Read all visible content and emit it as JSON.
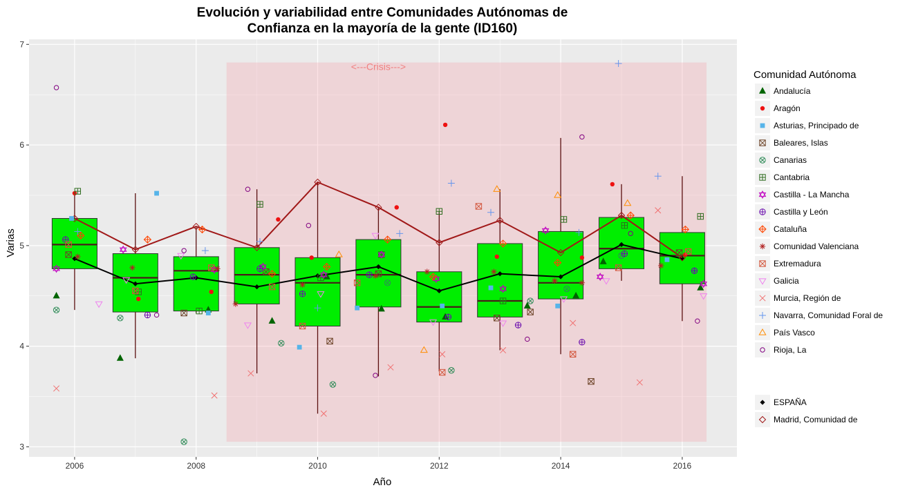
{
  "chart_data": {
    "type": "box",
    "title_line1": "Evolución y variabilidad entre Comunidades Autónomas de",
    "title_line2": "Confianza en la mayoría de la gente (ID160)",
    "xlabel": "Año",
    "ylabel": "Varias",
    "xlim": [
      2005.25,
      2016.9
    ],
    "ylim": [
      2.9,
      7.05
    ],
    "x_ticks": [
      2006,
      2008,
      2010,
      2012,
      2014,
      2016
    ],
    "y_ticks": [
      3,
      4,
      5,
      6,
      7
    ],
    "grid": true,
    "crisis": {
      "label": "<---Crisis--->",
      "x_range": [
        2008.5,
        2016.4
      ],
      "y_range": [
        3.05,
        6.82
      ],
      "color": "#f4a0a8"
    },
    "legend_title": "Comunidad Autónoma",
    "legend_position": "right",
    "boxes": [
      {
        "x": 2006,
        "q1": 4.77,
        "median": 5.01,
        "q3": 5.27,
        "whisker_low": 4.36,
        "whisker_high": 5.54
      },
      {
        "x": 2007,
        "q1": 4.34,
        "median": 4.68,
        "q3": 4.92,
        "whisker_low": 3.88,
        "whisker_high": 5.52
      },
      {
        "x": 2008,
        "q1": 4.35,
        "median": 4.75,
        "q3": 4.89,
        "whisker_low": 4.33,
        "whisker_high": 5.18
      },
      {
        "x": 2009,
        "q1": 4.42,
        "median": 4.71,
        "q3": 4.98,
        "whisker_low": 3.73,
        "whisker_high": 5.56
      },
      {
        "x": 2010,
        "q1": 4.2,
        "median": 4.63,
        "q3": 4.88,
        "whisker_low": 3.33,
        "whisker_high": 5.63
      },
      {
        "x": 2011,
        "q1": 4.39,
        "median": 4.71,
        "q3": 5.06,
        "whisker_low": 3.7,
        "whisker_high": 5.38
      },
      {
        "x": 2012,
        "q1": 4.24,
        "median": 4.39,
        "q3": 4.74,
        "whisker_low": 3.75,
        "whisker_high": 5.34
      },
      {
        "x": 2013,
        "q1": 4.29,
        "median": 4.45,
        "q3": 5.02,
        "whisker_low": 3.96,
        "whisker_high": 5.56
      },
      {
        "x": 2014,
        "q1": 4.47,
        "median": 4.63,
        "q3": 5.14,
        "whisker_low": 3.92,
        "whisker_high": 6.07
      },
      {
        "x": 2015,
        "q1": 4.77,
        "median": 4.97,
        "q3": 5.28,
        "whisker_low": 4.65,
        "whisker_high": 5.61
      },
      {
        "x": 2016,
        "q1": 4.62,
        "median": 4.9,
        "q3": 5.13,
        "whisker_low": 4.25,
        "whisker_high": 5.69
      }
    ],
    "box_fill": "#00ee00",
    "lines": [
      {
        "name": "ESPAÑA",
        "color": "#000000",
        "marker": "diamond-filled",
        "x": [
          2006,
          2007,
          2008,
          2009,
          2010,
          2011,
          2012,
          2013,
          2014,
          2015,
          2016
        ],
        "y": [
          4.87,
          4.62,
          4.68,
          4.59,
          4.7,
          4.79,
          4.55,
          4.72,
          4.69,
          5.01,
          4.87
        ]
      },
      {
        "name": "Madrid, Comunidad de",
        "color": "#a01818",
        "marker": "diamond-open",
        "x": [
          2006,
          2007,
          2008,
          2009,
          2010,
          2011,
          2012,
          2013,
          2014,
          2015,
          2016
        ],
        "y": [
          5.27,
          4.96,
          5.19,
          4.98,
          5.63,
          5.38,
          5.03,
          5.25,
          4.93,
          5.3,
          4.88
        ]
      }
    ],
    "legend_series": [
      {
        "name": "Andalucía",
        "color": "#006400",
        "marker": "triangle-filled"
      },
      {
        "name": "Aragón",
        "color": "#ee1111",
        "marker": "circle-filled"
      },
      {
        "name": "Asturias, Principado de",
        "color": "#56b4e9",
        "marker": "square-filled"
      },
      {
        "name": "Baleares, Islas",
        "color": "#6b4226",
        "marker": "square-x"
      },
      {
        "name": "Canarias",
        "color": "#2e8b57",
        "marker": "circle-x"
      },
      {
        "name": "Cantabria",
        "color": "#2e6b1e",
        "marker": "square-plus"
      },
      {
        "name": "Castilla - La Mancha",
        "color": "#c000c0",
        "marker": "star-of-david"
      },
      {
        "name": "Castilla y León",
        "color": "#6a0dad",
        "marker": "circle-plus"
      },
      {
        "name": "Cataluña",
        "color": "#ff4500",
        "marker": "diamond-plus"
      },
      {
        "name": "Comunidad Valenciana",
        "color": "#b22222",
        "marker": "asterisk"
      },
      {
        "name": "Extremadura",
        "color": "#d2553b",
        "marker": "square-x"
      },
      {
        "name": "Galicia",
        "color": "#ee82ee",
        "marker": "triangle-down"
      },
      {
        "name": "Murcia, Región de",
        "color": "#f07070",
        "marker": "x"
      },
      {
        "name": "Navarra, Comunidad Foral de",
        "color": "#6495ed",
        "marker": "plus"
      },
      {
        "name": "País Vasco",
        "color": "#ff8c00",
        "marker": "triangle-open"
      },
      {
        "name": "Rioja, La",
        "color": "#800080",
        "marker": "circle-open"
      }
    ],
    "points": [
      {
        "series": "Andalucía",
        "x": [
          2005.7,
          2006.75,
          2008.2,
          2009.25,
          2010.15,
          2011.05,
          2012.1,
          2013.45,
          2014.25,
          2014.7,
          2016.3
        ],
        "y": [
          4.5,
          3.88,
          4.36,
          4.25,
          4.69,
          4.37,
          4.29,
          4.4,
          4.5,
          4.84,
          4.58
        ]
      },
      {
        "series": "Aragón",
        "x": [
          2006.0,
          2007.05,
          2008.25,
          2009.35,
          2009.9,
          2011.3,
          2012.1,
          2012.95,
          2014.35,
          2014.85,
          2016.05
        ],
        "y": [
          5.52,
          4.47,
          4.54,
          5.26,
          4.88,
          5.38,
          6.2,
          4.89,
          4.88,
          5.61,
          4.91
        ]
      },
      {
        "series": "Asturias, Principado de",
        "x": [
          2005.95,
          2007.35,
          2008.2,
          2009.7,
          2010.65,
          2012.05,
          2012.85,
          2013.95,
          2015.75
        ],
        "y": [
          5.27,
          5.52,
          4.33,
          3.99,
          4.38,
          4.4,
          4.58,
          4.4,
          4.86
        ]
      },
      {
        "series": "Baleares, Islas",
        "x": [
          2005.9,
          2007.8,
          2009.15,
          2010.2,
          2011.0,
          2012.95,
          2013.5,
          2014.5,
          2015.95
        ],
        "y": [
          4.91,
          4.33,
          4.74,
          4.05,
          4.72,
          4.28,
          4.34,
          3.65,
          4.93
        ]
      },
      {
        "series": "Canarias",
        "x": [
          2005.7,
          2006.75,
          2007.8,
          2009.4,
          2010.25,
          2011.15,
          2012.2,
          2013.5,
          2014.1,
          2015.0,
          2016.2
        ],
        "y": [
          4.36,
          4.28,
          3.05,
          4.03,
          3.62,
          4.63,
          3.76,
          4.45,
          4.57,
          4.9,
          4.75
        ]
      },
      {
        "series": "Cantabria",
        "x": [
          2006.05,
          2007.05,
          2008.05,
          2009.05,
          2010.05,
          2011.05,
          2012.0,
          2013.05,
          2014.05,
          2015.05,
          2016.3
        ],
        "y": [
          5.54,
          4.54,
          4.35,
          5.41,
          4.68,
          4.91,
          5.34,
          4.45,
          5.26,
          5.2,
          5.29
        ]
      },
      {
        "series": "Castilla - La Mancha",
        "x": [
          2005.7,
          2006.8,
          2008.3,
          2009.1,
          2010.1,
          2011.05,
          2011.95,
          2013.05,
          2013.75,
          2014.65,
          2016.35
        ],
        "y": [
          4.77,
          4.96,
          4.76,
          4.79,
          4.71,
          4.91,
          4.67,
          4.57,
          5.15,
          4.69,
          4.62
        ]
      },
      {
        "series": "Castilla y León",
        "x": [
          2005.85,
          2007.2,
          2007.95,
          2009.05,
          2009.75,
          2010.85,
          2012.15,
          2013.3,
          2014.35,
          2015.05,
          2016.2
        ],
        "y": [
          5.06,
          4.31,
          4.69,
          4.77,
          4.52,
          4.71,
          4.29,
          4.21,
          4.04,
          4.92,
          4.75
        ]
      },
      {
        "series": "Cataluña",
        "x": [
          2006.1,
          2007.2,
          2008.1,
          2009.25,
          2010.15,
          2011.15,
          2011.9,
          2013.05,
          2013.95,
          2015.15,
          2016.05
        ],
        "y": [
          5.1,
          5.06,
          5.16,
          4.72,
          4.79,
          5.06,
          4.69,
          5.02,
          4.83,
          5.3,
          5.16
        ]
      },
      {
        "series": "Comunidad Valenciana",
        "x": [
          2006.05,
          2006.95,
          2008.35,
          2008.65,
          2009.75,
          2010.95,
          2011.8,
          2012.9,
          2013.9,
          2014.35,
          2015.65
        ],
        "y": [
          4.89,
          4.78,
          4.77,
          4.42,
          4.61,
          4.7,
          4.74,
          4.74,
          4.65,
          4.63,
          4.8
        ]
      },
      {
        "series": "Extremadura",
        "x": [
          2005.9,
          2007.0,
          2008.25,
          2009.25,
          2009.75,
          2010.65,
          2012.05,
          2012.65,
          2014.2,
          2014.95,
          2016.1
        ],
        "y": [
          5.01,
          4.55,
          4.78,
          4.59,
          4.2,
          4.63,
          3.74,
          5.39,
          3.92,
          4.78,
          4.94
        ]
      },
      {
        "series": "Galicia",
        "x": [
          2006.4,
          2006.85,
          2007.75,
          2008.85,
          2010.05,
          2010.95,
          2011.9,
          2013.05,
          2014.05,
          2014.75,
          2016.35
        ],
        "y": [
          4.42,
          4.66,
          4.9,
          4.21,
          4.52,
          5.1,
          4.24,
          4.23,
          4.47,
          4.65,
          4.5
        ]
      },
      {
        "series": "Murcia, Región de",
        "x": [
          2005.7,
          2008.3,
          2008.9,
          2010.1,
          2011.2,
          2012.05,
          2013.05,
          2014.2,
          2015.3,
          2015.6
        ],
        "y": [
          3.58,
          3.51,
          3.73,
          3.33,
          3.79,
          3.92,
          3.96,
          4.23,
          3.64,
          5.35
        ]
      },
      {
        "series": "Navarra, Comunidad Foral de",
        "x": [
          2006.05,
          2008.15,
          2009.05,
          2010.0,
          2011.35,
          2012.2,
          2012.85,
          2014.3,
          2014.95,
          2015.6
        ],
        "y": [
          5.14,
          4.95,
          5.04,
          4.38,
          5.12,
          5.62,
          5.33,
          5.13,
          6.81,
          5.69
        ]
      },
      {
        "series": "País Vasco",
        "x": [
          2010.35,
          2011.75,
          2012.95,
          2013.95,
          2015.1
        ],
        "y": [
          4.91,
          3.96,
          5.56,
          5.5,
          5.42
        ]
      },
      {
        "series": "Rioja, La",
        "x": [
          2005.7,
          2007.35,
          2007.8,
          2008.85,
          2009.85,
          2010.95,
          2013.45,
          2014.35,
          2015.15,
          2016.25
        ],
        "y": [
          6.57,
          4.31,
          4.95,
          5.56,
          5.2,
          3.71,
          4.07,
          6.08,
          5.12,
          4.25
        ]
      }
    ]
  }
}
